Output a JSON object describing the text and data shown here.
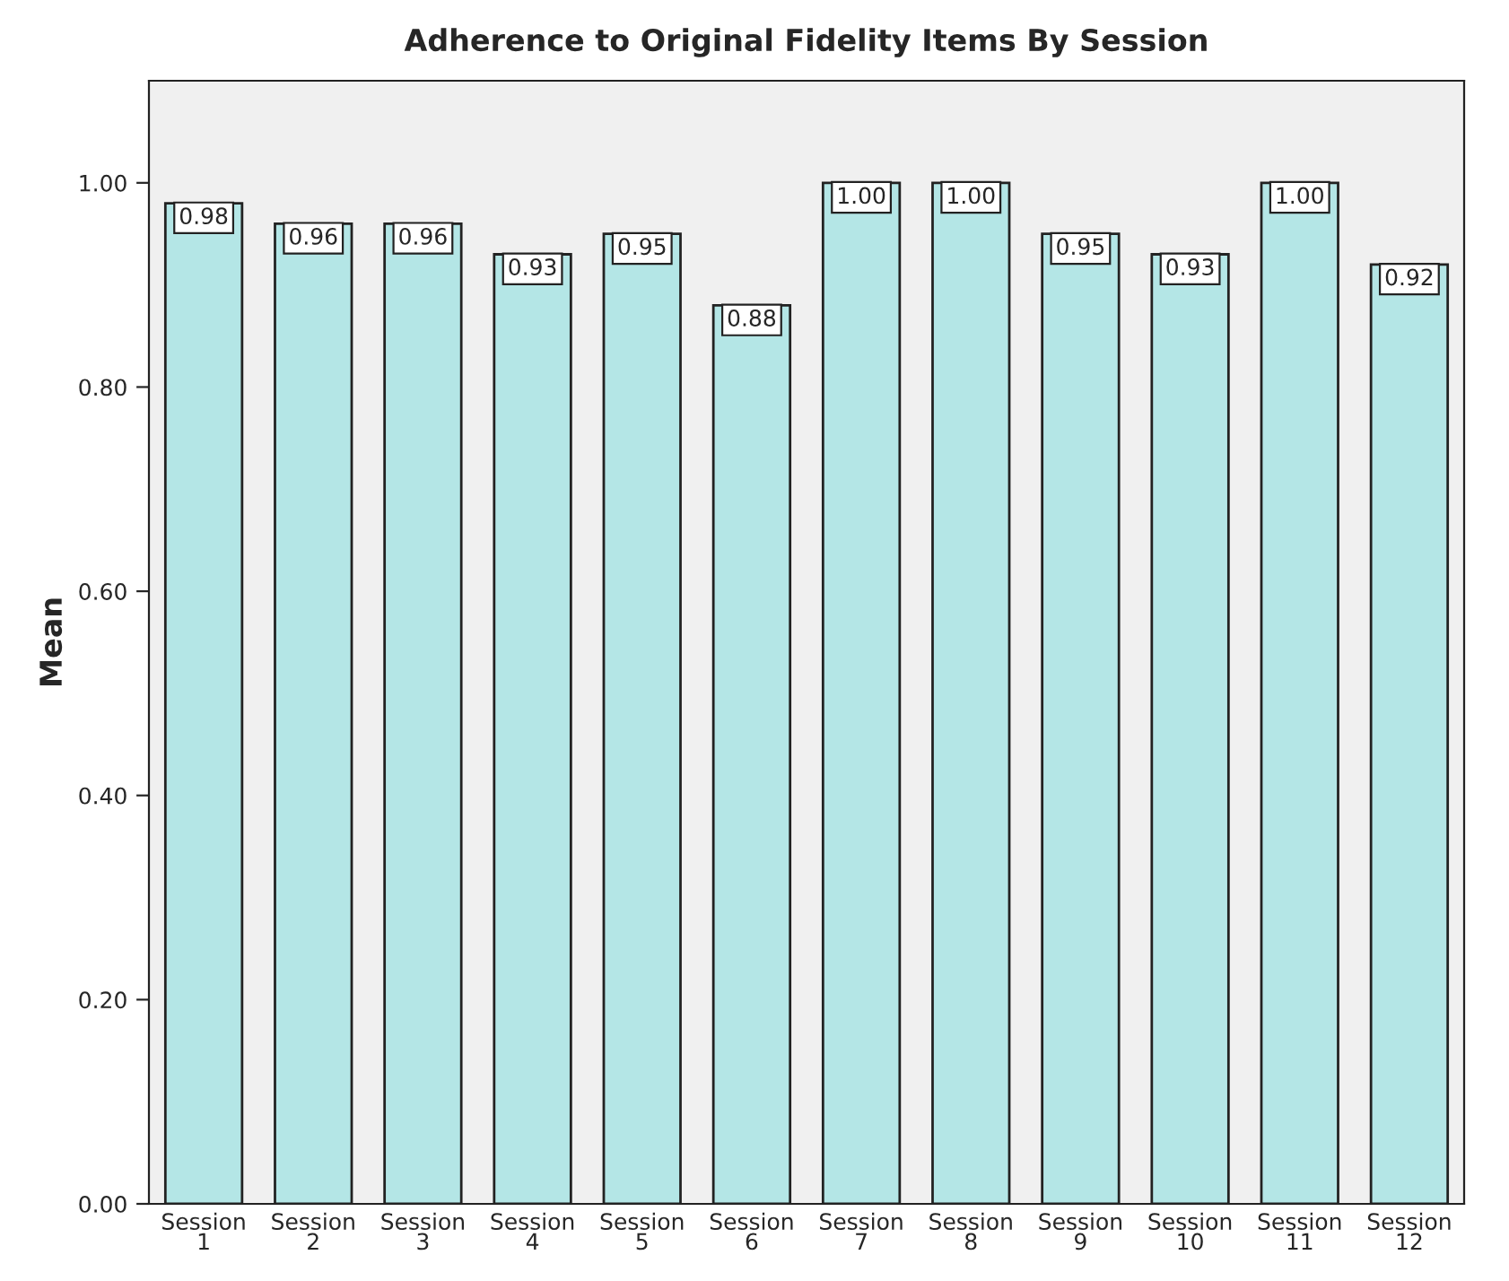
{
  "chart_data": {
    "type": "bar",
    "title": "Adherence to Original Fidelity Items By Session",
    "ylabel": "Mean",
    "categories": [
      "Session\n1",
      "Session\n2",
      "Session\n3",
      "Session\n4",
      "Session\n5",
      "Session\n6",
      "Session\n7",
      "Session\n8",
      "Session\n9",
      "Session\n10",
      "Session\n11",
      "Session\n12"
    ],
    "values": [
      0.98,
      0.96,
      0.96,
      0.93,
      0.95,
      0.88,
      1.0,
      1.0,
      0.95,
      0.93,
      1.0,
      0.92
    ],
    "value_labels": [
      "0.98",
      "0.96",
      "0.96",
      "0.93",
      "0.95",
      "0.88",
      "1.00",
      "1.00",
      "0.95",
      "0.93",
      "1.00",
      "0.92"
    ],
    "color": "#b4e6e6",
    "ylim": [
      0,
      1.1
    ],
    "yticks": [
      {
        "value": 0,
        "label": "0.00"
      },
      {
        "value": 0.2,
        "label": "0.20"
      },
      {
        "value": 0.4,
        "label": "0.40"
      },
      {
        "value": 0.6,
        "label": "0.60"
      },
      {
        "value": 0.8,
        "label": "0.80"
      },
      {
        "value": 1.0,
        "label": "1.00"
      }
    ],
    "grid": false,
    "legend": false
  }
}
